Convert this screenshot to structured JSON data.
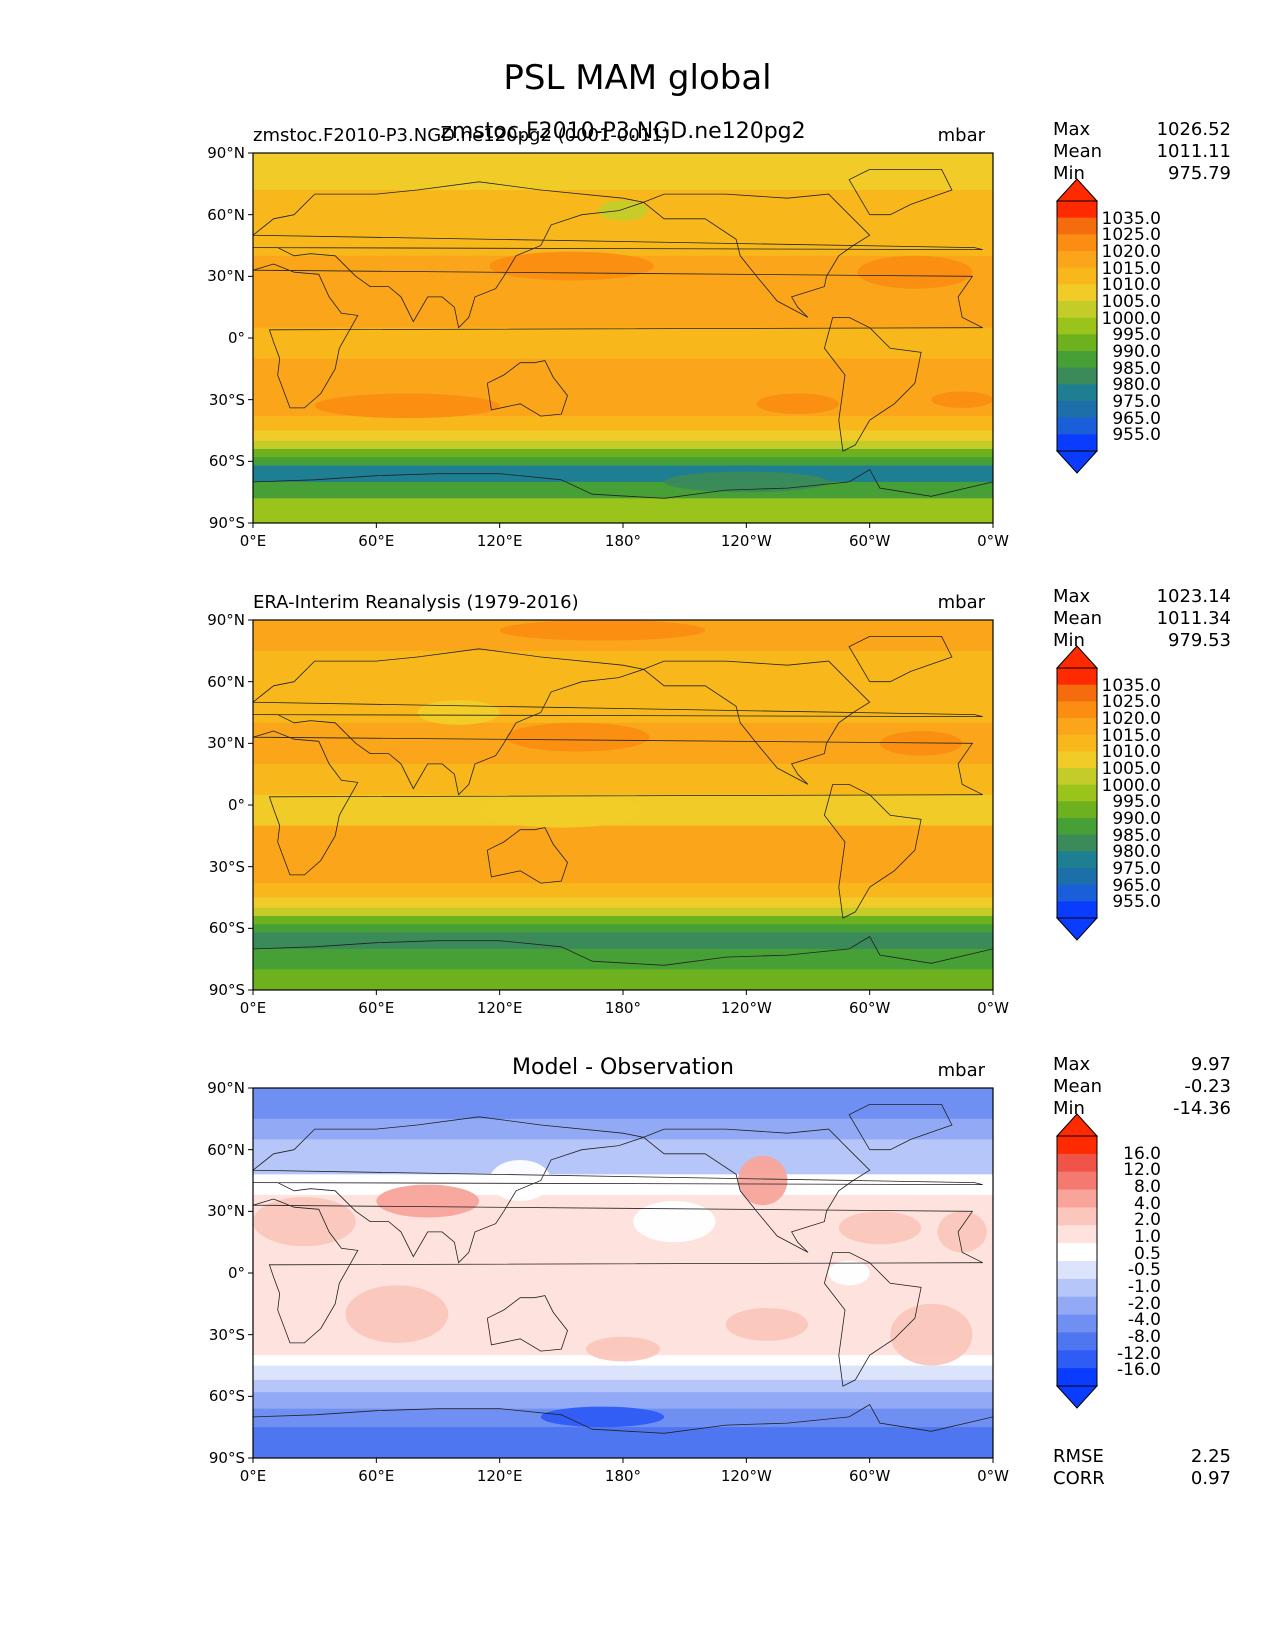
{
  "suptitle": "PSL MAM global",
  "palettes": {
    "abs": [
      "#0a3cff",
      "#1a5fd9",
      "#1c6fa8",
      "#1e7f92",
      "#3a8a5a",
      "#46a036",
      "#6db21e",
      "#9ac41c",
      "#c4cc2a",
      "#f1cc28",
      "#f8b81c",
      "#fba51a",
      "#fa8d12",
      "#f56c0e",
      "#ff2a00"
    ],
    "diff": [
      "#0a3cff",
      "#2e5cf5",
      "#4d76f0",
      "#6f8ff2",
      "#92aaf5",
      "#b6c6f8",
      "#dce4fc",
      "#ffffff",
      "#fde2de",
      "#fbc6bc",
      "#f8a49a",
      "#f47a70",
      "#f05348",
      "#ff2a00"
    ]
  },
  "chart_data": [
    {
      "type": "heatmap",
      "name": "model",
      "title": "zmstoc.F2010-P3.NGD.ne120pg2 (0001-0011)",
      "overlay_title": "zmstoc.F2010-P3.NGD.ne120pg2",
      "units": "mbar",
      "stats": {
        "max_label": "Max",
        "max": "1026.52",
        "mean_label": "Mean",
        "mean": "1011.11",
        "min_label": "Min",
        "min": "975.79"
      },
      "colorbar_levels": [
        "1035.0",
        "1025.0",
        "1020.0",
        "1015.0",
        "1010.0",
        "1005.0",
        "1000.0",
        "995.0",
        "990.0",
        "985.0",
        "980.0",
        "975.0",
        "965.0",
        "955.0"
      ],
      "xticks": [
        "0°E",
        "60°E",
        "120°E",
        "180°",
        "120°W",
        "60°W",
        "0°W"
      ],
      "yticks": [
        "90°N",
        "60°N",
        "30°N",
        "0°",
        "30°S",
        "60°S",
        "90°S"
      ],
      "palette": "abs",
      "bands": [
        {
          "lat": [
            90,
            72
          ],
          "level": 9
        },
        {
          "lat": [
            72,
            60
          ],
          "level": 10
        },
        {
          "lat": [
            60,
            40
          ],
          "level": 10
        },
        {
          "lat": [
            40,
            20
          ],
          "level": 11
        },
        {
          "lat": [
            20,
            5
          ],
          "level": 11
        },
        {
          "lat": [
            5,
            -10
          ],
          "level": 10
        },
        {
          "lat": [
            -10,
            -22
          ],
          "level": 11
        },
        {
          "lat": [
            -22,
            -38
          ],
          "level": 11
        },
        {
          "lat": [
            -38,
            -45
          ],
          "level": 10
        },
        {
          "lat": [
            -45,
            -50
          ],
          "level": 9
        },
        {
          "lat": [
            -50,
            -54
          ],
          "level": 8
        },
        {
          "lat": [
            -54,
            -58
          ],
          "level": 6
        },
        {
          "lat": [
            -58,
            -62
          ],
          "level": 5
        },
        {
          "lat": [
            -62,
            -70
          ],
          "level": 3
        },
        {
          "lat": [
            -70,
            -78
          ],
          "level": 5
        },
        {
          "lat": [
            -78,
            -90
          ],
          "level": 7
        }
      ],
      "blobs": [
        {
          "lon": 155,
          "lat": 35,
          "rlon": 40,
          "rlat": 7,
          "level": 12
        },
        {
          "lon": 322,
          "lat": 32,
          "rlon": 28,
          "rlat": 8,
          "level": 12
        },
        {
          "lon": 75,
          "lat": -33,
          "rlon": 45,
          "rlat": 6,
          "level": 12
        },
        {
          "lon": 265,
          "lat": -32,
          "rlon": 20,
          "rlat": 5,
          "level": 12
        },
        {
          "lon": 345,
          "lat": -30,
          "rlon": 15,
          "rlat": 4,
          "level": 12
        },
        {
          "lon": 180,
          "lat": 62,
          "rlon": 12,
          "rlat": 5,
          "level": 8
        },
        {
          "lon": 240,
          "lat": -70,
          "rlon": 40,
          "rlat": 5,
          "level": 4
        }
      ]
    },
    {
      "type": "heatmap",
      "name": "obs",
      "title": "ERA-Interim Reanalysis (1979-2016)",
      "units": "mbar",
      "stats": {
        "max_label": "Max",
        "max": "1023.14",
        "mean_label": "Mean",
        "mean": "1011.34",
        "min_label": "Min",
        "min": "979.53"
      },
      "colorbar_levels": [
        "1035.0",
        "1025.0",
        "1020.0",
        "1015.0",
        "1010.0",
        "1005.0",
        "1000.0",
        "995.0",
        "990.0",
        "985.0",
        "980.0",
        "975.0",
        "965.0",
        "955.0"
      ],
      "xticks": [
        "0°E",
        "60°E",
        "120°E",
        "180°",
        "120°W",
        "60°W",
        "0°W"
      ],
      "yticks": [
        "90°N",
        "60°N",
        "30°N",
        "0°",
        "30°S",
        "60°S",
        "90°S"
      ],
      "palette": "abs",
      "bands": [
        {
          "lat": [
            90,
            75
          ],
          "level": 11
        },
        {
          "lat": [
            75,
            60
          ],
          "level": 10
        },
        {
          "lat": [
            60,
            40
          ],
          "level": 10
        },
        {
          "lat": [
            40,
            20
          ],
          "level": 11
        },
        {
          "lat": [
            20,
            5
          ],
          "level": 10
        },
        {
          "lat": [
            5,
            -10
          ],
          "level": 9
        },
        {
          "lat": [
            -10,
            -22
          ],
          "level": 11
        },
        {
          "lat": [
            -22,
            -38
          ],
          "level": 11
        },
        {
          "lat": [
            -38,
            -45
          ],
          "level": 10
        },
        {
          "lat": [
            -45,
            -50
          ],
          "level": 9
        },
        {
          "lat": [
            -50,
            -54
          ],
          "level": 8
        },
        {
          "lat": [
            -54,
            -58
          ],
          "level": 6
        },
        {
          "lat": [
            -58,
            -62
          ],
          "level": 5
        },
        {
          "lat": [
            -62,
            -70
          ],
          "level": 4
        },
        {
          "lat": [
            -70,
            -80
          ],
          "level": 5
        },
        {
          "lat": [
            -80,
            -90
          ],
          "level": 6
        }
      ],
      "blobs": [
        {
          "lon": 158,
          "lat": 33,
          "rlon": 35,
          "rlat": 7,
          "level": 12
        },
        {
          "lon": 325,
          "lat": 30,
          "rlon": 20,
          "rlat": 6,
          "level": 12
        },
        {
          "lon": 170,
          "lat": 85,
          "rlon": 50,
          "rlat": 5,
          "level": 12
        },
        {
          "lon": 100,
          "lat": 45,
          "rlon": 20,
          "rlat": 6,
          "level": 9
        },
        {
          "lon": 150,
          "lat": -3,
          "rlon": 40,
          "rlat": 8,
          "level": 9
        }
      ]
    },
    {
      "type": "heatmap",
      "name": "diff",
      "title": "Model - Observation",
      "units": "mbar",
      "stats": {
        "max_label": "Max",
        "max": "9.97",
        "mean_label": "Mean",
        "mean": "-0.23",
        "min_label": "Min",
        "min": "-14.36"
      },
      "rmse_label": "RMSE",
      "rmse": "2.25",
      "corr_label": "CORR",
      "corr": "0.97",
      "colorbar_levels": [
        "16.0",
        "12.0",
        "8.0",
        "4.0",
        "2.0",
        "1.0",
        "0.5",
        "-0.5",
        "-1.0",
        "-2.0",
        "-4.0",
        "-8.0",
        "-12.0",
        "-16.0"
      ],
      "xticks": [
        "0°E",
        "60°E",
        "120°E",
        "180°",
        "120°W",
        "60°W",
        "0°W"
      ],
      "yticks": [
        "90°N",
        "60°N",
        "30°N",
        "0°",
        "30°S",
        "60°S",
        "90°S"
      ],
      "palette": "diff",
      "bands": [
        {
          "lat": [
            90,
            75
          ],
          "level": 3
        },
        {
          "lat": [
            75,
            65
          ],
          "level": 4
        },
        {
          "lat": [
            65,
            48
          ],
          "level": 5
        },
        {
          "lat": [
            48,
            38
          ],
          "level": 7
        },
        {
          "lat": [
            38,
            25
          ],
          "level": 8
        },
        {
          "lat": [
            25,
            -40
          ],
          "level": 8
        },
        {
          "lat": [
            -40,
            -45
          ],
          "level": 7
        },
        {
          "lat": [
            -45,
            -52
          ],
          "level": 6
        },
        {
          "lat": [
            -52,
            -58
          ],
          "level": 5
        },
        {
          "lat": [
            -58,
            -66
          ],
          "level": 4
        },
        {
          "lat": [
            -66,
            -75
          ],
          "level": 3
        },
        {
          "lat": [
            -75,
            -90
          ],
          "level": 2
        }
      ],
      "blobs": [
        {
          "lon": 25,
          "lat": 25,
          "rlon": 25,
          "rlat": 12,
          "level": 9
        },
        {
          "lon": 85,
          "lat": 35,
          "rlon": 25,
          "rlat": 8,
          "level": 10
        },
        {
          "lon": 248,
          "lat": 45,
          "rlon": 12,
          "rlat": 12,
          "level": 10
        },
        {
          "lon": 305,
          "lat": 22,
          "rlon": 20,
          "rlat": 8,
          "level": 9
        },
        {
          "lon": 345,
          "lat": 20,
          "rlon": 12,
          "rlat": 10,
          "level": 9
        },
        {
          "lon": 70,
          "lat": -20,
          "rlon": 25,
          "rlat": 14,
          "level": 9
        },
        {
          "lon": 180,
          "lat": -37,
          "rlon": 18,
          "rlat": 6,
          "level": 9
        },
        {
          "lon": 250,
          "lat": -25,
          "rlon": 20,
          "rlat": 8,
          "level": 9
        },
        {
          "lon": 330,
          "lat": -30,
          "rlon": 20,
          "rlat": 15,
          "level": 9
        },
        {
          "lon": 290,
          "lat": 0,
          "rlon": 10,
          "rlat": 6,
          "level": 7
        },
        {
          "lon": 205,
          "lat": 25,
          "rlon": 20,
          "rlat": 10,
          "level": 7
        },
        {
          "lon": 130,
          "lat": 45,
          "rlon": 15,
          "rlat": 10,
          "level": 7
        },
        {
          "lon": 170,
          "lat": -70,
          "rlon": 30,
          "rlat": 5,
          "level": 1
        }
      ]
    }
  ]
}
